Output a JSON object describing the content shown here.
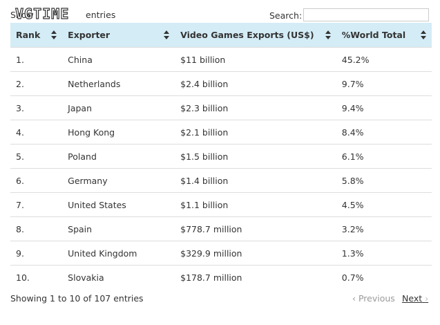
{
  "header": {
    "show_label": "Show",
    "show_suffix": "entries",
    "search_label": "Search:",
    "watermark": "VGTIME"
  },
  "table": {
    "columns": [
      "Rank",
      "Exporter",
      "Video Games Exports (US$)",
      "%World Total"
    ],
    "rows": [
      [
        "1.",
        "China",
        "$11 billion",
        "45.2%"
      ],
      [
        "2.",
        "Netherlands",
        "$2.4 billion",
        "9.7%"
      ],
      [
        "3.",
        "Japan",
        "$2.3 billion",
        "9.4%"
      ],
      [
        "4.",
        "Hong Kong",
        "$2.1 billion",
        "8.4%"
      ],
      [
        "5.",
        "Poland",
        "$1.5 billion",
        "6.1%"
      ],
      [
        "6.",
        "Germany",
        "$1.4 billion",
        "5.8%"
      ],
      [
        "7.",
        "United States",
        "$1.1 billion",
        "4.5%"
      ],
      [
        "8.",
        "Spain",
        "$778.7 million",
        "3.2%"
      ],
      [
        "9.",
        "United Kingdom",
        "$329.9 million",
        "1.3%"
      ],
      [
        "10.",
        "Slovakia",
        "$178.7 million",
        "0.7%"
      ]
    ]
  },
  "footer": {
    "info": "Showing 1 to 10 of 107 entries",
    "previous": "Previous",
    "next": "Next"
  }
}
